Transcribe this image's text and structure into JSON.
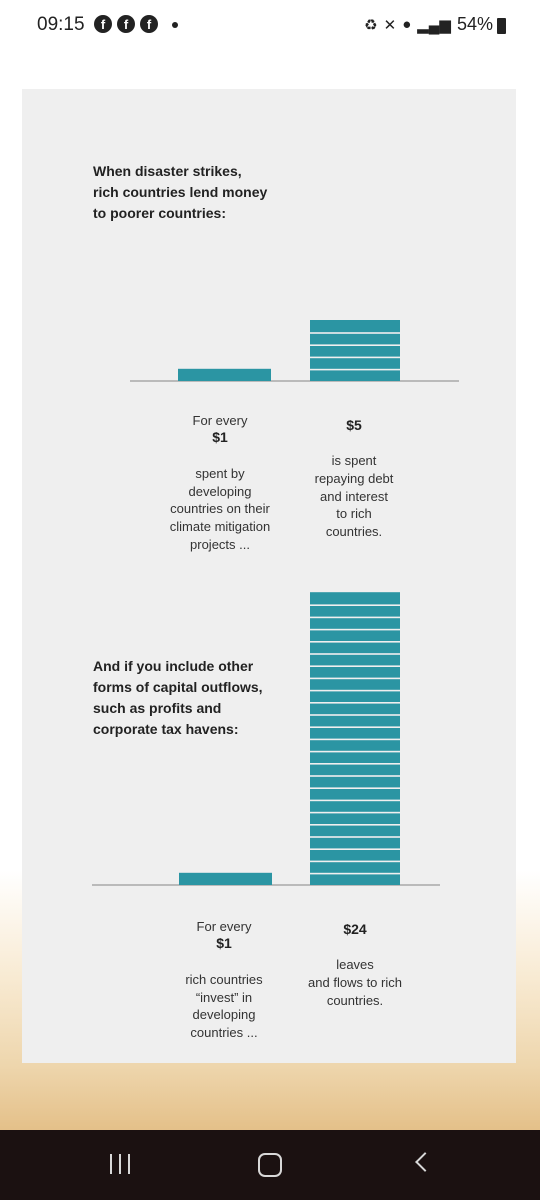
{
  "status_bar": {
    "time": "09:15",
    "notification_icons": [
      "facebook-icon",
      "facebook-icon",
      "facebook-icon"
    ],
    "battery": "54%"
  },
  "chart_data": [
    {
      "type": "bar",
      "title": "When disaster strikes,\nrich countries lend money\nto poorer countries:",
      "categories": [
        "$1",
        "$5"
      ],
      "values": [
        1,
        5
      ],
      "labels": [
        {
          "value": "$1",
          "before": "For every",
          "after": "spent by\ndeveloping\ncountries on their\nclimate mitigation\nprojects ..."
        },
        {
          "value": "$5",
          "before": "",
          "after": "is spent\nrepaying debt\nand interest\nto rich\ncountries."
        }
      ],
      "bar_color": "#2b95a3",
      "xlabel": "",
      "ylabel": "",
      "grid": false
    },
    {
      "type": "bar",
      "title": "And if you include other\nforms of capital outflows,\nsuch as profits and\ncorporate tax havens:",
      "categories": [
        "$1",
        "$24"
      ],
      "values": [
        1,
        24
      ],
      "labels": [
        {
          "value": "$1",
          "before": "For every",
          "after": "rich countries\n“invest” in\ndeveloping\ncountries ..."
        },
        {
          "value": "$24",
          "before": "",
          "after": "leaves\nand flows to rich\ncountries."
        }
      ],
      "bar_color": "#2b95a3",
      "xlabel": "",
      "ylabel": "",
      "grid": false
    }
  ],
  "nav": {
    "recent_icon": "recent-apps-icon",
    "home_icon": "home-icon",
    "back_icon": "back-icon"
  }
}
